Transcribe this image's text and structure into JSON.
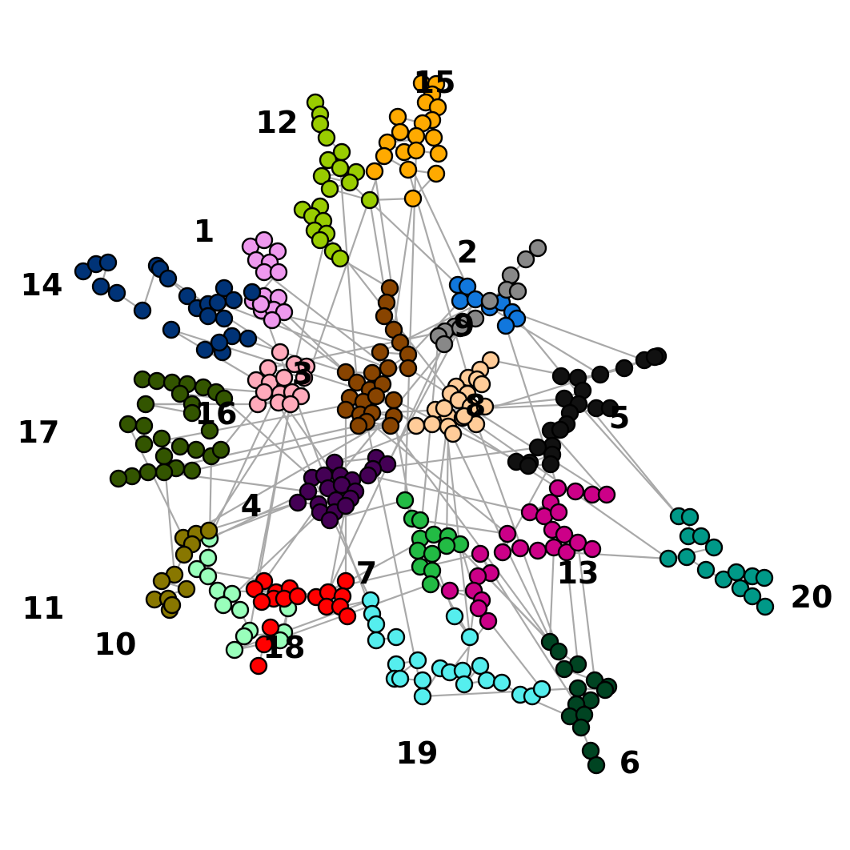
{
  "clusters": [
    {
      "id": "1",
      "label": "1",
      "color": "#ee99ee"
    },
    {
      "id": "2",
      "label": "2",
      "color": "#1177dd"
    },
    {
      "id": "3",
      "label": "3",
      "color": "#ffaabb"
    },
    {
      "id": "4",
      "label": "4",
      "color": "#440055"
    },
    {
      "id": "5",
      "label": "5",
      "color": "#111111"
    },
    {
      "id": "6",
      "label": "6",
      "color": "#004422"
    },
    {
      "id": "7",
      "label": "7",
      "color": "#22bb44"
    },
    {
      "id": "8",
      "label": "8",
      "color": "#ffcc99"
    },
    {
      "id": "9",
      "label": "9",
      "color": "#888888"
    },
    {
      "id": "10",
      "label": "10",
      "color": "#99ffbb"
    },
    {
      "id": "11",
      "label": "11",
      "color": "#887700"
    },
    {
      "id": "12",
      "label": "12",
      "color": "#99cc00"
    },
    {
      "id": "13",
      "label": "13",
      "color": "#cc0088"
    },
    {
      "id": "14",
      "label": "14",
      "color": "#003377"
    },
    {
      "id": "15",
      "label": "15",
      "color": "#ffaa00"
    },
    {
      "id": "16",
      "label": "16",
      "color": "#884400"
    },
    {
      "id": "17",
      "label": "17",
      "color": "#335500"
    },
    {
      "id": "18",
      "label": "18",
      "color": "#ff0000"
    },
    {
      "id": "19",
      "label": "19",
      "color": "#55eeee"
    },
    {
      "id": "20",
      "label": "20",
      "color": "#009988"
    }
  ],
  "edge_color": "#a9a9a9",
  "node_outline_color": "#000000"
}
